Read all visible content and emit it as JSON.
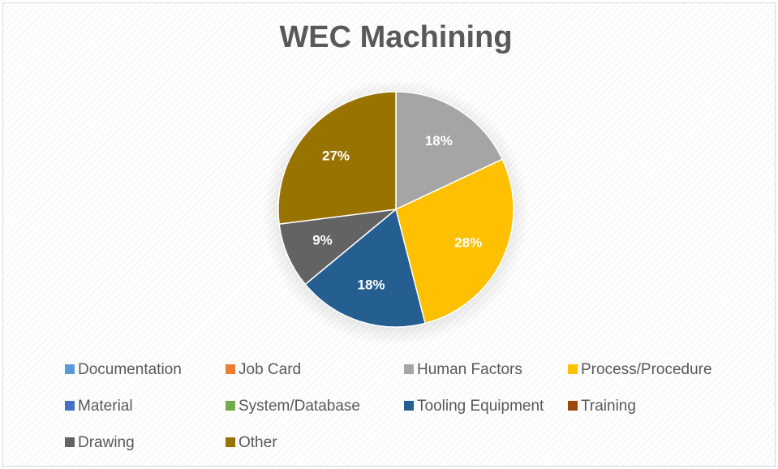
{
  "chart_data": {
    "type": "pie",
    "title": "WEC Machining",
    "categories": [
      "Documentation",
      "Job Card",
      "Human Factors",
      "Process/Procedure",
      "Material",
      "System/Database",
      "Tooling Equipment",
      "Training",
      "Drawing",
      "Other"
    ],
    "values": [
      0,
      0,
      18,
      28,
      0,
      0,
      18,
      0,
      9,
      27
    ],
    "value_labels": [
      null,
      null,
      "18%",
      "28%",
      null,
      null,
      "18%",
      null,
      "9%",
      "27%"
    ],
    "colors": [
      "#5b9bd5",
      "#ed7d31",
      "#a5a5a5",
      "#ffc000",
      "#4472c4",
      "#70ad47",
      "#255e91",
      "#9e480e",
      "#636363",
      "#997300"
    ],
    "legend": "bottom"
  }
}
